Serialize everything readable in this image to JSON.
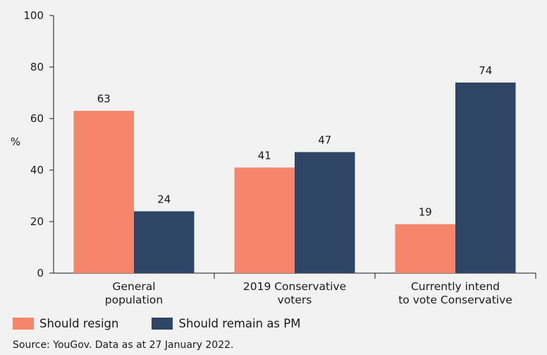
{
  "chart_data": {
    "type": "bar",
    "title": "",
    "xlabel": "",
    "ylabel": "%",
    "ylim": [
      0,
      100
    ],
    "yticks": [
      0,
      20,
      40,
      60,
      80,
      100
    ],
    "categories": [
      [
        "General",
        "population"
      ],
      [
        "2019 Conservative",
        "voters"
      ],
      [
        "Currently intend",
        "to vote Conservative"
      ]
    ],
    "series": [
      {
        "name": "Should resign",
        "color": "#f5866a",
        "values": [
          63,
          41,
          19
        ]
      },
      {
        "name": "Should remain as PM",
        "color": "#2e4566",
        "values": [
          24,
          47,
          74
        ]
      }
    ],
    "legend_position": "bottom-left"
  },
  "source": "Source: YouGov. Data as at 27 January 2022."
}
